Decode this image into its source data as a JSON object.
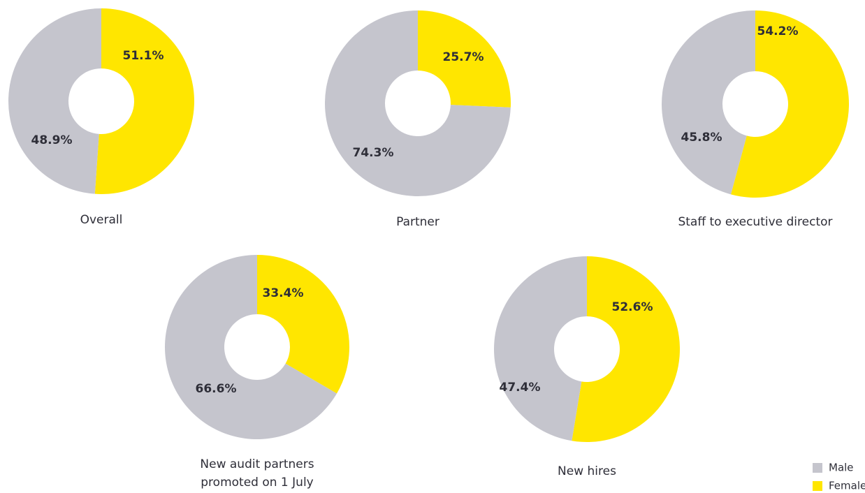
{
  "legend": [
    {
      "name": "Male",
      "color": "#c5c5cd"
    },
    {
      "name": "Female",
      "color": "#ffe600"
    }
  ],
  "chart_data": [
    {
      "type": "donut",
      "title": "Overall",
      "values": [
        48.9,
        51.1
      ],
      "value_labels": [
        "48.9%",
        "51.1%"
      ]
    },
    {
      "type": "donut",
      "title": "Partner",
      "values": [
        74.3,
        25.7
      ],
      "value_labels": [
        "74.3%",
        "25.7%"
      ]
    },
    {
      "type": "donut",
      "title": "Staff to executive director",
      "values": [
        45.8,
        54.2
      ],
      "value_labels": [
        "45.8%",
        "54.2%"
      ]
    },
    {
      "type": "donut",
      "title": "New audit partners promoted on 1 July",
      "values": [
        66.6,
        33.4
      ],
      "value_labels": [
        "66.6%",
        "33.4%"
      ]
    },
    {
      "type": "donut",
      "title": "New hires",
      "values": [
        47.4,
        52.6
      ],
      "value_labels": [
        "47.4%",
        "52.6%"
      ]
    }
  ]
}
